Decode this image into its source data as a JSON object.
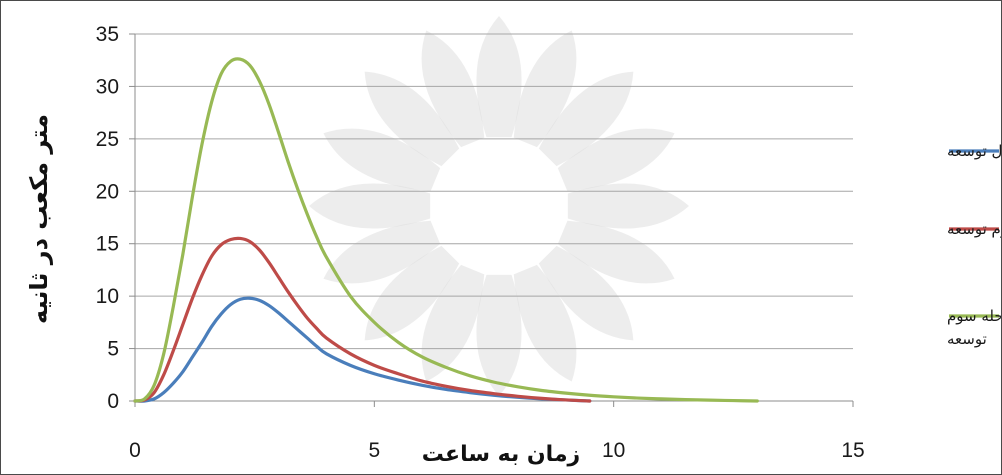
{
  "chart_data": {
    "type": "line",
    "ylabel": "متر مکعب در ثانیه",
    "xlabel": "زمان به ساعت",
    "xlim": [
      0,
      15
    ],
    "ylim": [
      0,
      35
    ],
    "xticks": [
      "0",
      "5",
      "10",
      "15"
    ],
    "yticks": [
      "0",
      "5",
      "10",
      "15",
      "20",
      "25",
      "30",
      "35"
    ],
    "grid": "horizontal",
    "legend_position": "right",
    "series": [
      {
        "name": "هیدروگراف مرحله اول توسعه",
        "color": "#4a7ebb",
        "x": [
          0,
          0.2,
          0.4,
          0.6,
          0.8,
          1.0,
          1.2,
          1.4,
          1.6,
          1.8,
          2.0,
          2.2,
          2.4,
          2.6,
          2.8,
          3.0,
          3.2,
          3.4,
          3.6,
          3.8,
          4.0,
          4.5,
          5.0,
          5.5,
          6.0,
          6.5,
          7.0,
          7.5,
          8.0,
          8.5,
          9.0,
          9.5
        ],
        "y": [
          0,
          0,
          0.2,
          0.8,
          1.7,
          2.8,
          4.2,
          5.6,
          7.1,
          8.3,
          9.2,
          9.7,
          9.8,
          9.6,
          9.1,
          8.4,
          7.6,
          6.8,
          6.0,
          5.2,
          4.5,
          3.4,
          2.6,
          2.0,
          1.5,
          1.1,
          0.8,
          0.55,
          0.35,
          0.2,
          0.1,
          0
        ]
      },
      {
        "name": "هیدروگراف مرحله دوم توسعه",
        "color": "#be4b48",
        "x": [
          0,
          0.2,
          0.4,
          0.6,
          0.8,
          1.0,
          1.2,
          1.4,
          1.6,
          1.8,
          2.0,
          2.2,
          2.4,
          2.6,
          2.8,
          3.0,
          3.2,
          3.4,
          3.6,
          3.8,
          4.0,
          4.5,
          5.0,
          5.5,
          6.0,
          6.5,
          7.0,
          7.5,
          8.0,
          8.5,
          9.0,
          9.5
        ],
        "y": [
          0,
          0.1,
          0.8,
          2.5,
          4.8,
          7.3,
          9.8,
          12.0,
          13.8,
          14.9,
          15.4,
          15.5,
          15.2,
          14.4,
          13.2,
          11.8,
          10.4,
          9.1,
          7.9,
          6.9,
          6.0,
          4.5,
          3.4,
          2.6,
          1.9,
          1.4,
          1.0,
          0.7,
          0.45,
          0.25,
          0.1,
          0
        ]
      },
      {
        "name": "هیدروگراف مرحله سوم توسعه",
        "color": "#98b954",
        "x": [
          0,
          0.2,
          0.4,
          0.6,
          0.8,
          1.0,
          1.2,
          1.4,
          1.6,
          1.8,
          2.0,
          2.2,
          2.4,
          2.6,
          2.8,
          3.0,
          3.2,
          3.4,
          3.6,
          3.8,
          4.0,
          4.5,
          5.0,
          5.5,
          6.0,
          6.5,
          7.0,
          7.5,
          8.0,
          8.5,
          9.0,
          9.5,
          10.0,
          10.5,
          11.0,
          11.5,
          12.0,
          12.5,
          13.0
        ],
        "y": [
          0,
          0.2,
          1.5,
          4.5,
          9.0,
          14.0,
          19.5,
          24.5,
          28.5,
          31.2,
          32.4,
          32.6,
          32.0,
          30.5,
          28.3,
          25.6,
          22.8,
          20.2,
          17.8,
          15.6,
          13.7,
          10.0,
          7.5,
          5.6,
          4.2,
          3.2,
          2.4,
          1.8,
          1.35,
          1.0,
          0.75,
          0.55,
          0.4,
          0.28,
          0.2,
          0.13,
          0.08,
          0.04,
          0
        ]
      }
    ]
  },
  "legend": {
    "items": [
      {
        "line1": "هیدروگراف مرحله اول توسعه",
        "line2": ""
      },
      {
        "line1": "هیدروگراف مرحله دوم توسعه",
        "line2": ""
      },
      {
        "line1": "هیدروگراف مرحله سوم",
        "line2": "توسعه"
      }
    ]
  }
}
